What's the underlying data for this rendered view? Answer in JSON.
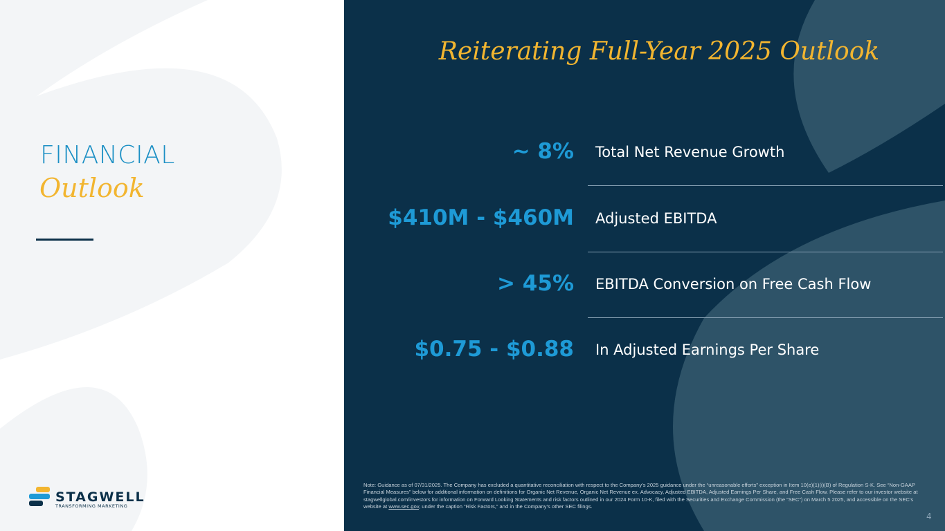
{
  "sidebar": {
    "heading": "FINANCIAL",
    "subheading": "Outlook"
  },
  "logo": {
    "name": "STAGWELL",
    "tagline": "TRANSFORMING MARKETING"
  },
  "title": "Reiterating Full-Year 2025 Outlook",
  "rows": [
    {
      "value": "~ 8%",
      "label": "Total Net Revenue Growth"
    },
    {
      "value": "$410M - $460M",
      "label": "Adjusted EBITDA"
    },
    {
      "value": "> 45%",
      "label": "EBITDA Conversion on Free Cash Flow"
    },
    {
      "value": "$0.75 - $0.88",
      "label": "In Adjusted Earnings Per Share"
    }
  ],
  "note": {
    "before": "Note: Guidance as of 07/31/2025. The Company has excluded a quantitative reconciliation with respect to the Company’s 2025 guidance under the “unreasonable efforts” exception in Item 10(e)(1)(i)(B) of Regulation S-K. See “Non-GAAP Financial Measures” below for additional information on definitions for Organic Net Revenue, Organic Net Revenue ex. Advocacy, Adjusted EBITDA, Adjusted Earnings Per Share, and Free Cash Flow. Please refer to our investor website at stagwellglobal.com/investors for information on Forward Looking Statements and risk factors outlined in our 2024 Form 10-K, filed with the Securities and Exchange Commission (the “SEC”) on March 5 2025, and accessible on the SEC’s website at ",
    "link": "www.sec.gov",
    "after": ", under the caption “Risk Factors,” and in the Company’s other SEC filings."
  },
  "page_number": "4"
}
